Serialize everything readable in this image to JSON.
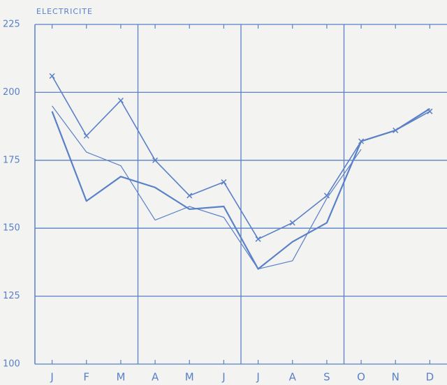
{
  "chart_data": {
    "type": "line",
    "title": "ELECTRICITE",
    "categories": [
      "J",
      "F",
      "M",
      "A",
      "M",
      "J",
      "J",
      "A",
      "S",
      "O",
      "N",
      "D"
    ],
    "series": [
      {
        "color": "#5a80c8",
        "marker": "x",
        "linewidth": 1.6,
        "values": [
          206,
          184,
          197,
          175,
          162,
          167,
          146,
          152,
          162,
          182,
          186,
          193
        ]
      },
      {
        "color": "#5a80c8",
        "marker": "none",
        "linewidth": 2.2,
        "values": [
          193,
          160,
          169,
          165,
          157,
          158,
          135,
          145,
          152,
          182,
          186,
          194
        ]
      },
      {
        "color": "#5a80c8",
        "marker": "none",
        "linewidth": 1.2,
        "values": [
          195,
          178,
          173,
          153,
          158,
          154,
          135,
          138,
          161,
          179,
          null,
          null
        ]
      }
    ],
    "ylim": [
      100,
      225
    ],
    "yticks": [
      100,
      125,
      150,
      175,
      200,
      225
    ],
    "grid": true
  }
}
